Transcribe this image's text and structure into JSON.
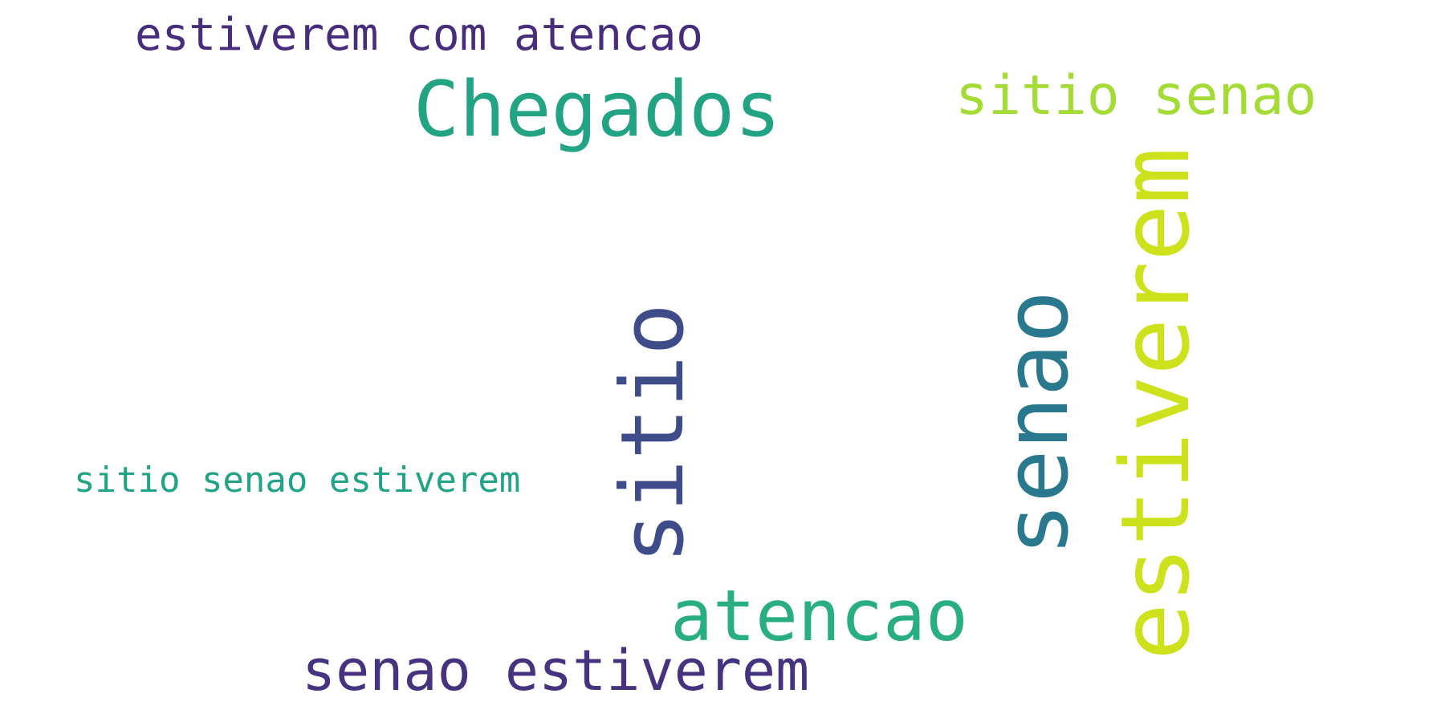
{
  "words": {
    "estiverem_com_atencao": {
      "text": "estiverem com atencao",
      "color": "#472d7b"
    },
    "chegados": {
      "text": "Chegados",
      "color": "#22a384"
    },
    "sitio_senao": {
      "text": "sitio senao",
      "color": "#a5db36"
    },
    "sitio_senao_estiverem": {
      "text": "sitio senao estiverem",
      "color": "#20a386"
    },
    "sitio": {
      "text": "sitio",
      "color": "#3e4c8a"
    },
    "senao": {
      "text": "senao",
      "color": "#2a788e"
    },
    "estiverem": {
      "text": "estiverem",
      "color": "#cde11d"
    },
    "atencao": {
      "text": "atencao",
      "color": "#29af7f"
    },
    "senao_estiverem": {
      "text": "senao estiverem",
      "color": "#46327e"
    }
  }
}
